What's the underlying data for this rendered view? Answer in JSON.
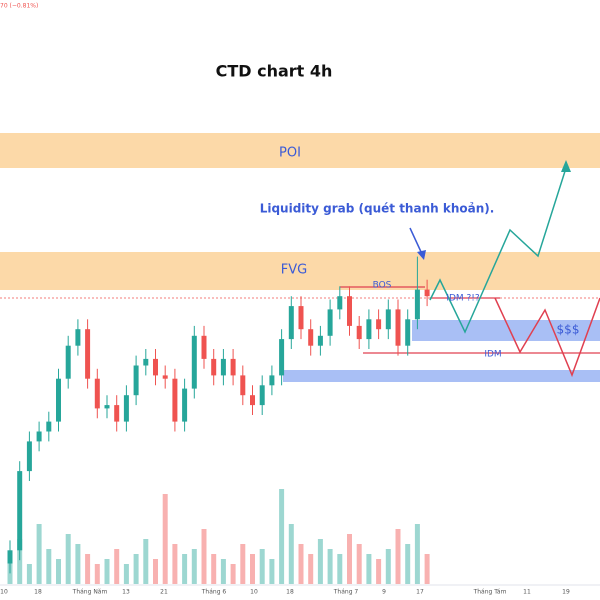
{
  "chart_data": {
    "type": "candlestick",
    "title": "CTD chart 4h",
    "ticker_change": "70 (−0.81%)",
    "annotations": {
      "poi": "POI",
      "fvg": "FVG",
      "grab": "Liquidity grab (quét thanh khoản).",
      "bos": "BOS",
      "idm_top": "IDM ?!?",
      "liquidity": "$$$",
      "idm_bottom": "IDM"
    },
    "x_labels": [
      "10",
      "18",
      "Tháng Năm",
      "13",
      "21",
      "Tháng 6",
      "10",
      "18",
      "Tháng 7",
      "9",
      "17",
      "Tháng Tám",
      "11",
      "19"
    ],
    "up_color": "#26a69a",
    "down_color": "#ef5350",
    "open": [
      5,
      9,
      33,
      42,
      45,
      48,
      61,
      71,
      76,
      61,
      52,
      53,
      48,
      56,
      65,
      67,
      62,
      61,
      48,
      58,
      74,
      67,
      62,
      67,
      62,
      56,
      53,
      59,
      62,
      73,
      83,
      76,
      71,
      74,
      82,
      86,
      77,
      73,
      79,
      76,
      82,
      71,
      79,
      88
    ],
    "high": [
      12,
      36,
      45,
      48,
      51,
      64,
      74,
      79,
      79,
      64,
      56,
      56,
      59,
      68,
      70,
      70,
      65,
      64,
      61,
      77,
      77,
      70,
      70,
      70,
      65,
      59,
      62,
      65,
      76,
      86,
      86,
      79,
      77,
      85,
      89,
      89,
      80,
      82,
      82,
      85,
      85,
      82,
      98,
      91
    ],
    "low": [
      2,
      6,
      30,
      39,
      42,
      45,
      58,
      68,
      58,
      49,
      49,
      45,
      45,
      53,
      62,
      59,
      58,
      45,
      45,
      55,
      64,
      59,
      59,
      59,
      53,
      50,
      50,
      56,
      59,
      70,
      73,
      68,
      68,
      71,
      79,
      74,
      70,
      70,
      73,
      73,
      68,
      68,
      76,
      83
    ],
    "close": [
      9,
      33,
      42,
      45,
      48,
      61,
      71,
      76,
      61,
      52,
      53,
      48,
      56,
      65,
      67,
      62,
      61,
      48,
      58,
      74,
      67,
      62,
      67,
      62,
      56,
      53,
      59,
      62,
      73,
      83,
      76,
      71,
      74,
      82,
      86,
      77,
      73,
      79,
      76,
      82,
      71,
      79,
      88,
      86
    ],
    "volume": [
      30,
      45,
      20,
      60,
      35,
      25,
      50,
      40,
      30,
      20,
      25,
      35,
      20,
      30,
      45,
      25,
      90,
      40,
      30,
      35,
      55,
      30,
      25,
      20,
      40,
      30,
      35,
      25,
      95,
      60,
      40,
      30,
      45,
      35,
      30,
      50,
      40,
      30,
      25,
      35,
      55,
      40,
      60,
      30
    ]
  }
}
